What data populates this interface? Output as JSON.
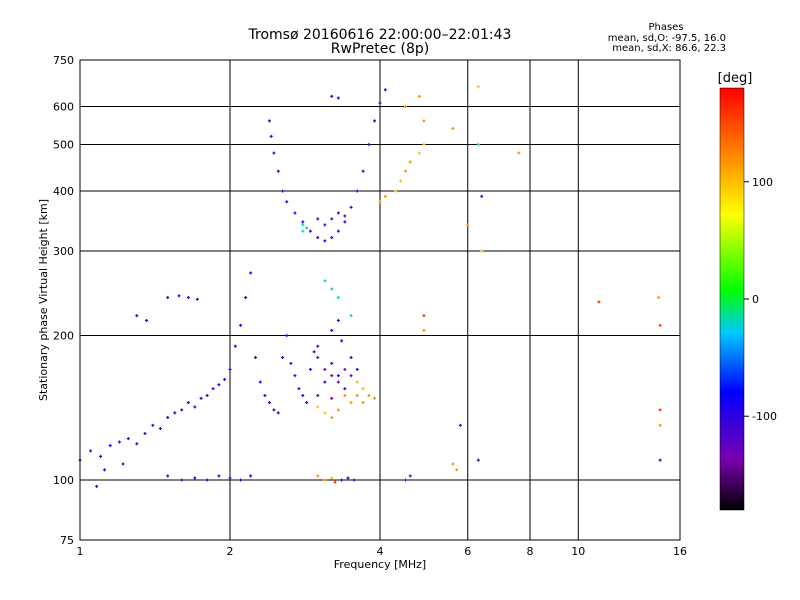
{
  "header": {
    "title": "Tromsø 20160616 22:00:00–22:01:43",
    "subtitle": "RwPretec (8p)"
  },
  "stats": {
    "heading": "Phases",
    "o_mode": "mean, sd,O: -97.5, 16.0",
    "x_mode": "mean, sd,X: 86.6, 22.3"
  },
  "chart_data": {
    "type": "scatter",
    "title": "Tromsø 20160616 22:00:00–22:01:43",
    "subtitle": "RwPretec (8p)",
    "xlabel": "Frequency [MHz]",
    "ylabel": "Stationary phase Virtual Height [km]",
    "x_scale": "log",
    "y_scale": "log",
    "xlim": [
      1,
      16
    ],
    "ylim": [
      75,
      750
    ],
    "x_ticks": [
      1,
      2,
      4,
      6,
      8,
      10,
      16
    ],
    "y_ticks": [
      75,
      100,
      200,
      300,
      400,
      500,
      600,
      750
    ],
    "grid": true,
    "colorbar": {
      "label": "[deg]",
      "range": [
        -180,
        180
      ],
      "ticks": [
        100,
        0,
        -100
      ]
    },
    "series": [
      {
        "points": [
          [
            1.0,
            110,
            -100
          ],
          [
            1.05,
            115,
            -100
          ],
          [
            1.1,
            112,
            -100
          ],
          [
            1.15,
            118,
            -100
          ],
          [
            1.2,
            120,
            -100
          ],
          [
            1.25,
            122,
            -100
          ],
          [
            1.3,
            119,
            -100
          ],
          [
            1.35,
            125,
            -100
          ],
          [
            1.4,
            130,
            -100
          ],
          [
            1.45,
            128,
            -100
          ],
          [
            1.5,
            135,
            -100
          ],
          [
            1.55,
            138,
            -100
          ],
          [
            1.6,
            140,
            -100
          ],
          [
            1.65,
            145,
            -100
          ],
          [
            1.7,
            142,
            -100
          ],
          [
            1.75,
            148,
            -100
          ],
          [
            1.8,
            150,
            -100
          ],
          [
            1.85,
            155,
            -100
          ],
          [
            1.9,
            158,
            -100
          ],
          [
            1.95,
            162,
            -100
          ],
          [
            2.0,
            170,
            -100
          ],
          [
            2.05,
            190,
            -100
          ],
          [
            2.1,
            210,
            -100
          ],
          [
            2.15,
            240,
            -100
          ],
          [
            2.2,
            270,
            -100
          ],
          [
            2.25,
            180,
            -100
          ],
          [
            2.3,
            160,
            -100
          ],
          [
            2.35,
            150,
            -100
          ],
          [
            2.4,
            145,
            -100
          ],
          [
            2.45,
            140,
            -100
          ],
          [
            2.5,
            138,
            -100
          ],
          [
            2.55,
            180,
            -100
          ],
          [
            2.6,
            200,
            -100
          ],
          [
            2.65,
            175,
            -100
          ],
          [
            2.7,
            165,
            -100
          ],
          [
            2.75,
            155,
            -100
          ],
          [
            2.8,
            150,
            -100
          ],
          [
            2.85,
            145,
            -100
          ],
          [
            2.9,
            170,
            -100
          ],
          [
            2.95,
            185,
            -100
          ],
          [
            3.0,
            190,
            -100
          ],
          [
            3.1,
            160,
            -100
          ],
          [
            3.2,
            175,
            -100
          ],
          [
            3.3,
            165,
            -100
          ],
          [
            3.4,
            155,
            -100
          ],
          [
            3.5,
            180,
            -100
          ],
          [
            3.6,
            170,
            -100
          ],
          [
            3.2,
            205,
            -100
          ],
          [
            3.3,
            215,
            -100
          ],
          [
            3.35,
            195,
            -100
          ],
          [
            1.12,
            105,
            -100
          ],
          [
            1.22,
            108,
            -100
          ],
          [
            1.08,
            97,
            -100
          ],
          [
            1.3,
            220,
            -100
          ],
          [
            1.36,
            215,
            -100
          ],
          [
            1.5,
            240,
            -100
          ],
          [
            1.58,
            242,
            -100
          ],
          [
            1.65,
            240,
            -100
          ],
          [
            1.72,
            238,
            -100
          ],
          [
            1.5,
            102,
            -100
          ],
          [
            1.6,
            100,
            -100
          ],
          [
            1.7,
            101,
            -100
          ],
          [
            1.8,
            100,
            -100
          ],
          [
            1.9,
            102,
            -100
          ],
          [
            2.0,
            101,
            -100
          ],
          [
            2.1,
            100,
            -100
          ],
          [
            2.2,
            102,
            -100
          ],
          [
            3.35,
            100,
            -100
          ],
          [
            3.45,
            101,
            -100
          ],
          [
            3.55,
            100,
            -100
          ],
          [
            2.4,
            560,
            -100
          ],
          [
            2.42,
            520,
            -100
          ],
          [
            2.45,
            480,
            -100
          ],
          [
            2.5,
            440,
            -100
          ],
          [
            2.55,
            400,
            -100
          ],
          [
            2.6,
            380,
            -100
          ],
          [
            2.7,
            360,
            -100
          ],
          [
            2.8,
            345,
            -100
          ],
          [
            2.9,
            330,
            -100
          ],
          [
            3.0,
            320,
            -100
          ],
          [
            3.1,
            315,
            -100
          ],
          [
            3.2,
            320,
            -100
          ],
          [
            3.3,
            330,
            -100
          ],
          [
            3.4,
            345,
            -100
          ],
          [
            3.5,
            370,
            -100
          ],
          [
            3.6,
            400,
            -100
          ],
          [
            3.7,
            440,
            -100
          ],
          [
            3.8,
            500,
            -100
          ],
          [
            3.9,
            560,
            -100
          ],
          [
            4.0,
            610,
            -100
          ],
          [
            4.1,
            650,
            -100
          ],
          [
            3.2,
            630,
            -100
          ],
          [
            3.3,
            625,
            -100
          ],
          [
            3.0,
            350,
            -120
          ],
          [
            3.1,
            340,
            -120
          ],
          [
            3.2,
            350,
            -120
          ],
          [
            3.3,
            360,
            -120
          ],
          [
            3.4,
            355,
            -120
          ],
          [
            3.0,
            180,
            -140
          ],
          [
            3.1,
            170,
            -140
          ],
          [
            3.2,
            165,
            -140
          ],
          [
            3.3,
            160,
            -130
          ],
          [
            3.4,
            170,
            -130
          ],
          [
            3.5,
            165,
            -130
          ],
          [
            3.0,
            150,
            -140
          ],
          [
            3.2,
            148,
            -140
          ],
          [
            2.8,
            340,
            -20
          ],
          [
            2.85,
            335,
            -20
          ],
          [
            3.1,
            260,
            -20
          ],
          [
            3.2,
            250,
            -20
          ],
          [
            3.3,
            240,
            -20
          ],
          [
            3.5,
            220,
            -20
          ],
          [
            3.6,
            150,
            120
          ],
          [
            3.7,
            145,
            120
          ],
          [
            3.8,
            150,
            120
          ],
          [
            3.9,
            148,
            120
          ],
          [
            3.4,
            150,
            120
          ],
          [
            3.5,
            145,
            120
          ],
          [
            3.3,
            140,
            120
          ],
          [
            3.2,
            135,
            120
          ],
          [
            3.1,
            138,
            100
          ],
          [
            3.0,
            142,
            100
          ],
          [
            3.6,
            160,
            100
          ],
          [
            3.7,
            155,
            100
          ],
          [
            4.0,
            380,
            120
          ],
          [
            4.1,
            390,
            120
          ],
          [
            4.3,
            400,
            100
          ],
          [
            4.4,
            420,
            100
          ],
          [
            4.5,
            440,
            120
          ],
          [
            4.6,
            460,
            120
          ],
          [
            4.8,
            480,
            100
          ],
          [
            4.9,
            500,
            100
          ],
          [
            4.5,
            600,
            120
          ],
          [
            4.8,
            630,
            120
          ],
          [
            4.9,
            560,
            120
          ],
          [
            3.0,
            102,
            120
          ],
          [
            3.1,
            100,
            120
          ],
          [
            3.2,
            101,
            100
          ],
          [
            3.25,
            99,
            160
          ],
          [
            4.5,
            100,
            -120
          ],
          [
            4.6,
            102,
            -120
          ],
          [
            5.6,
            108,
            120
          ],
          [
            5.7,
            105,
            120
          ],
          [
            6.3,
            660,
            100
          ],
          [
            6.3,
            500,
            -20
          ],
          [
            6.4,
            390,
            -120
          ],
          [
            6.0,
            340,
            120
          ],
          [
            5.6,
            540,
            120
          ],
          [
            7.6,
            480,
            120
          ],
          [
            6.4,
            300,
            100
          ],
          [
            4.9,
            220,
            160
          ],
          [
            4.9,
            205,
            120
          ],
          [
            11.0,
            235,
            160
          ],
          [
            14.5,
            240,
            120
          ],
          [
            14.6,
            210,
            160
          ],
          [
            14.6,
            140,
            160
          ],
          [
            14.6,
            130,
            120
          ],
          [
            14.6,
            110,
            -100
          ],
          [
            6.3,
            110,
            -100
          ],
          [
            5.8,
            130,
            -120
          ],
          [
            2.8,
            330,
            -20
          ]
        ]
      }
    ]
  }
}
